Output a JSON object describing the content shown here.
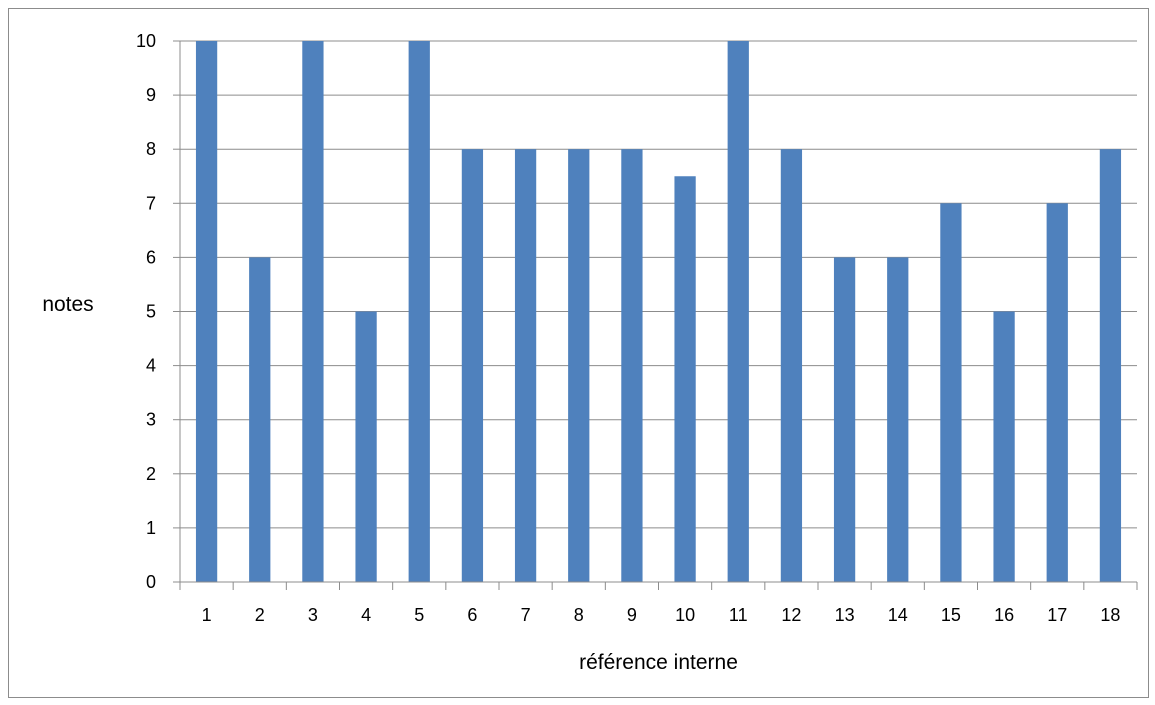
{
  "chart_data": {
    "type": "bar",
    "categories": [
      "1",
      "2",
      "3",
      "4",
      "5",
      "6",
      "7",
      "8",
      "9",
      "10",
      "11",
      "12",
      "13",
      "14",
      "15",
      "16",
      "17",
      "18"
    ],
    "series": [
      {
        "values": [
          10,
          6,
          10,
          5,
          10,
          8,
          8,
          8,
          8,
          7.5,
          10,
          8,
          6,
          6,
          7,
          5,
          7,
          8
        ]
      }
    ],
    "xlabel": "référence interne",
    "ylabel": "notes",
    "ylim": [
      0,
      10
    ],
    "yticks": [
      "0",
      "1",
      "2",
      "3",
      "4",
      "5",
      "6",
      "7",
      "8",
      "9",
      "10"
    ],
    "grid": "horizontal",
    "legend": "none",
    "colors": {
      "bar": "#4f81bd",
      "grid": "#8c8c8c",
      "axis": "#8c8c8c",
      "border": "#8c8c8c"
    }
  }
}
